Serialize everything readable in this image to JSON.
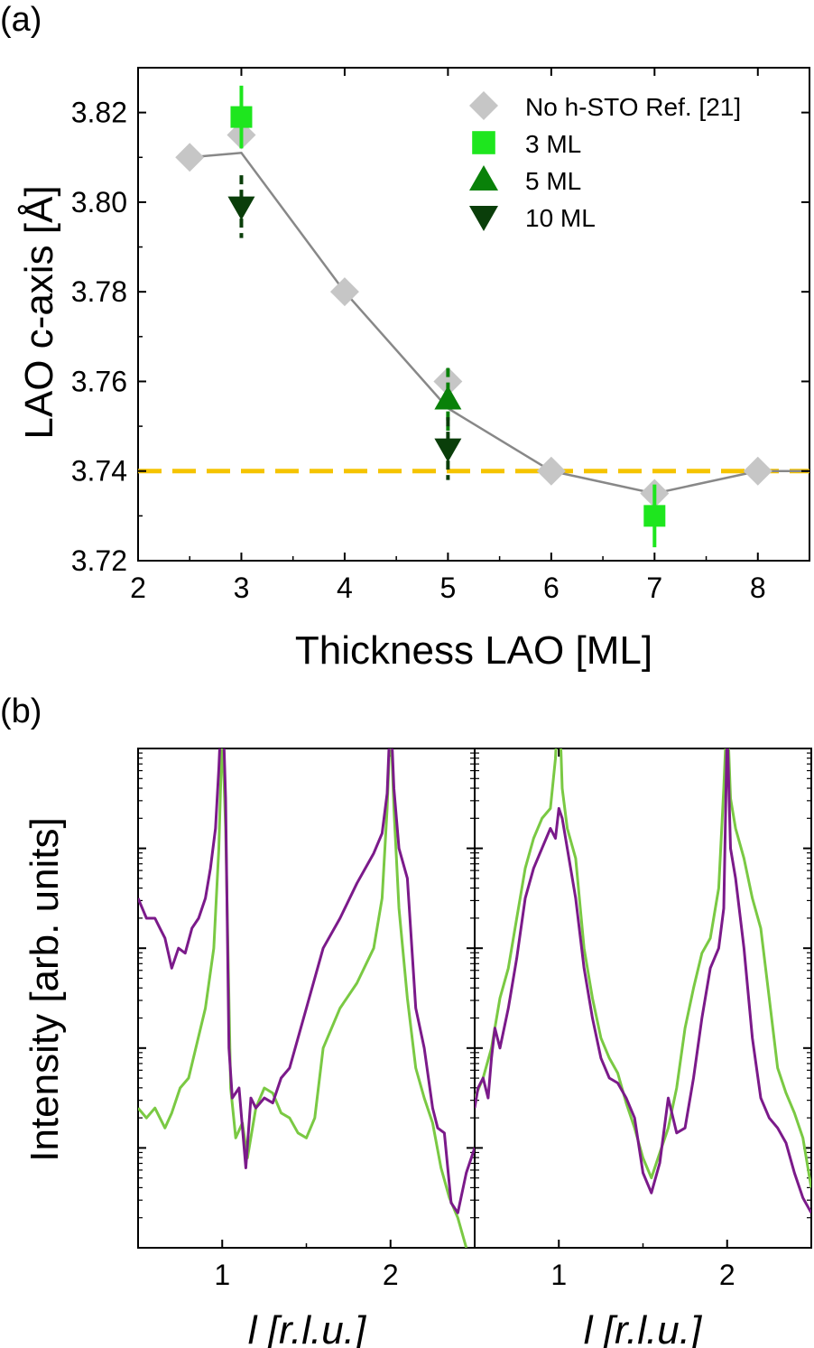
{
  "panel_labels": {
    "a": "(a)",
    "b": "(b)"
  },
  "chart_data": [
    {
      "type": "scatter",
      "panel": "(a)",
      "title": "",
      "xlabel": "Thickness LAO [ML]",
      "ylabel": "LAO c-axis [Å]",
      "xlim": [
        2,
        8.5
      ],
      "ylim": [
        3.72,
        3.83
      ],
      "xticks": [
        2,
        3,
        4,
        5,
        6,
        7,
        8
      ],
      "xtick_labels": [
        "2",
        "3",
        "4",
        "5",
        "6",
        "7",
        "8"
      ],
      "yticks": [
        3.72,
        3.74,
        3.76,
        3.78,
        3.8,
        3.82
      ],
      "ytick_labels": [
        "3.72",
        "3.74",
        "3.76",
        "3.78",
        "3.80",
        "3.82"
      ],
      "legend_position": "top-right",
      "reference_line": {
        "y": 3.74,
        "style": "dashed",
        "color": "#f5c400"
      },
      "guide_line": {
        "x": [
          2.5,
          3,
          4,
          5,
          6,
          7,
          8,
          8.5
        ],
        "y": [
          3.81,
          3.811,
          3.78,
          3.754,
          3.74,
          3.735,
          3.74,
          3.74
        ],
        "color": "#888888"
      },
      "series": [
        {
          "name": "No h-STO Ref. [21]",
          "marker": "diamond",
          "color": "#c6c6c6",
          "x": [
            2.5,
            3,
            4,
            5,
            6,
            7,
            8
          ],
          "y": [
            3.81,
            3.815,
            3.78,
            3.76,
            3.74,
            3.735,
            3.74
          ],
          "err": []
        },
        {
          "name": "3 ML",
          "marker": "square",
          "color": "#1ee61e",
          "x": [
            3,
            7
          ],
          "y": [
            3.819,
            3.73
          ],
          "err": [
            0.007,
            0.007
          ]
        },
        {
          "name": "5 ML",
          "marker": "triangle-up",
          "color": "#098109",
          "x": [
            5
          ],
          "y": [
            3.756
          ],
          "err": [
            0.007
          ]
        },
        {
          "name": "10 ML",
          "marker": "triangle-down",
          "color": "#0a3e0a",
          "x": [
            3,
            5
          ],
          "y": [
            3.799,
            3.745
          ],
          "err": [
            0.007,
            0.007
          ]
        }
      ]
    },
    {
      "type": "line",
      "panel": "(b) left",
      "xlabel": "l [r.l.u.]",
      "ylabel": "Intensity [arb. units]",
      "yscale": "log",
      "xlim": [
        0.5,
        2.5
      ],
      "ylim": [
        0,
        5
      ],
      "xticks": [
        1,
        2
      ],
      "xtick_labels": [
        "1",
        "2"
      ],
      "series": [
        {
          "name": "purple",
          "color": "#7b1a8a",
          "x": [
            0.5,
            0.55,
            0.6,
            0.63,
            0.66,
            0.7,
            0.74,
            0.78,
            0.82,
            0.86,
            0.9,
            0.93,
            0.96,
            0.98,
            1.0,
            1.02,
            1.04,
            1.06,
            1.1,
            1.14,
            1.17,
            1.2,
            1.25,
            1.3,
            1.35,
            1.4,
            1.5,
            1.6,
            1.7,
            1.8,
            1.9,
            1.95,
            1.98,
            2.0,
            2.02,
            2.05,
            2.1,
            2.15,
            2.2,
            2.25,
            2.28,
            2.32,
            2.36,
            2.4,
            2.45,
            2.5
          ],
          "y": [
            3.5,
            3.3,
            3.3,
            3.2,
            3.1,
            2.8,
            3.0,
            2.95,
            3.2,
            3.3,
            3.5,
            3.8,
            4.2,
            4.8,
            5.6,
            4.5,
            2.0,
            1.5,
            1.6,
            0.8,
            1.5,
            1.4,
            1.5,
            1.45,
            1.7,
            1.8,
            2.4,
            3.0,
            3.3,
            3.65,
            3.95,
            4.15,
            4.55,
            5.4,
            4.6,
            4.0,
            3.7,
            2.4,
            2.0,
            1.4,
            1.2,
            1.15,
            0.45,
            0.35,
            0.75,
            1.0
          ]
        },
        {
          "name": "green",
          "color": "#7ac943",
          "x": [
            0.5,
            0.55,
            0.6,
            0.63,
            0.66,
            0.7,
            0.75,
            0.8,
            0.85,
            0.9,
            0.95,
            0.98,
            1.0,
            1.02,
            1.05,
            1.08,
            1.12,
            1.15,
            1.2,
            1.25,
            1.3,
            1.35,
            1.4,
            1.45,
            1.5,
            1.55,
            1.6,
            1.7,
            1.8,
            1.9,
            1.95,
            1.98,
            2.0,
            2.02,
            2.05,
            2.1,
            2.15,
            2.2,
            2.25,
            2.3,
            2.35,
            2.4,
            2.45
          ],
          "y": [
            1.4,
            1.3,
            1.4,
            1.3,
            1.2,
            1.35,
            1.6,
            1.7,
            2.05,
            2.4,
            3.0,
            4.0,
            5.2,
            4.2,
            1.6,
            1.1,
            1.25,
            0.9,
            1.4,
            1.6,
            1.55,
            1.35,
            1.3,
            1.15,
            1.1,
            1.3,
            2.0,
            2.4,
            2.65,
            3.0,
            3.5,
            4.4,
            5.3,
            4.4,
            3.4,
            2.5,
            1.8,
            1.5,
            1.25,
            0.8,
            0.5,
            0.3,
            0
          ]
        }
      ]
    },
    {
      "type": "line",
      "panel": "(b) right",
      "xlabel": "l [r.l.u.]",
      "ylabel": "",
      "yscale": "log",
      "xlim": [
        0.5,
        2.5
      ],
      "ylim": [
        0,
        5
      ],
      "xticks": [
        1,
        2
      ],
      "xtick_labels": [
        "1",
        "2"
      ],
      "series": [
        {
          "name": "purple",
          "color": "#7b1a8a",
          "x": [
            0.5,
            0.52,
            0.55,
            0.58,
            0.6,
            0.62,
            0.65,
            0.7,
            0.75,
            0.8,
            0.85,
            0.9,
            0.95,
            0.98,
            1.0,
            1.02,
            1.05,
            1.1,
            1.15,
            1.2,
            1.25,
            1.3,
            1.35,
            1.4,
            1.45,
            1.5,
            1.55,
            1.6,
            1.65,
            1.7,
            1.75,
            1.8,
            1.85,
            1.9,
            1.95,
            1.98,
            2.0,
            2.02,
            2.05,
            2.1,
            2.15,
            2.2,
            2.25,
            2.3,
            2.35,
            2.4,
            2.45,
            2.5
          ],
          "y": [
            1.4,
            1.6,
            1.7,
            1.5,
            1.9,
            2.2,
            2.0,
            2.4,
            2.9,
            3.5,
            3.8,
            4.0,
            4.2,
            4.1,
            4.4,
            4.3,
            4.0,
            3.5,
            2.8,
            2.3,
            1.9,
            1.7,
            1.65,
            1.5,
            1.3,
            0.75,
            0.55,
            0.85,
            1.5,
            1.15,
            1.2,
            1.7,
            2.3,
            2.8,
            3.0,
            3.4,
            5.2,
            4.0,
            3.7,
            3.0,
            2.1,
            1.5,
            1.3,
            1.2,
            1.05,
            0.75,
            0.5,
            0.35
          ]
        },
        {
          "name": "green",
          "color": "#7ac943",
          "x": [
            0.5,
            0.55,
            0.6,
            0.65,
            0.7,
            0.75,
            0.8,
            0.85,
            0.9,
            0.95,
            0.98,
            1.0,
            1.02,
            1.05,
            1.1,
            1.15,
            1.2,
            1.25,
            1.3,
            1.35,
            1.4,
            1.45,
            1.5,
            1.55,
            1.6,
            1.65,
            1.7,
            1.75,
            1.8,
            1.85,
            1.9,
            1.95,
            1.98,
            2.0,
            2.02,
            2.05,
            2.1,
            2.15,
            2.2,
            2.25,
            2.3,
            2.35,
            2.4,
            2.45,
            2.5
          ],
          "y": [
            1.5,
            1.7,
            2.0,
            2.5,
            2.8,
            3.3,
            3.8,
            4.1,
            4.3,
            4.4,
            4.9,
            5.6,
            4.6,
            4.2,
            3.9,
            3.0,
            2.5,
            2.1,
            1.9,
            1.75,
            1.45,
            1.2,
            0.9,
            0.7,
            0.95,
            1.2,
            1.6,
            2.2,
            2.6,
            2.95,
            3.1,
            3.6,
            4.6,
            5.4,
            4.5,
            4.2,
            3.9,
            3.5,
            3.2,
            2.5,
            1.8,
            1.55,
            1.35,
            1.1,
            0.6
          ]
        }
      ]
    }
  ]
}
